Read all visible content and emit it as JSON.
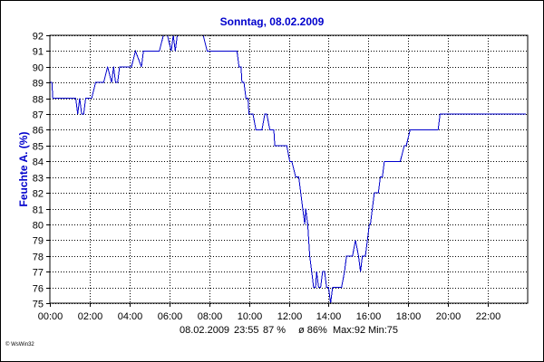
{
  "chart_data": {
    "type": "line",
    "title": "Sonntag, 08.02.2009",
    "ylabel": "Feuchte A. (%)",
    "xlabel": "",
    "ylim": [
      75,
      92
    ],
    "xlim": [
      0,
      24
    ],
    "grid": true,
    "y_ticks": [
      "75",
      "76",
      "77",
      "78",
      "79",
      "80",
      "81",
      "82",
      "83",
      "84",
      "85",
      "86",
      "87",
      "88",
      "89",
      "90",
      "91",
      "92"
    ],
    "x_ticks": [
      "00:00",
      "02:00",
      "04:00",
      "06:00",
      "08:00",
      "10:00",
      "12:00",
      "14:00",
      "16:00",
      "18:00",
      "20:00",
      "22:00"
    ],
    "footer": [
      "08.02.2009",
      "23:55",
      "87 %",
      "ø 86%",
      "Max:92",
      "Min:75"
    ],
    "credit": "© WsWin32",
    "colors": {
      "line": "#0000cc",
      "title": "#0000cc",
      "ylabel": "#0000cc",
      "grid": "#000000"
    },
    "series": [
      {
        "x": [
          0,
          0.1,
          0.15,
          0.25,
          0.35,
          1.3,
          1.4,
          1.5,
          1.6,
          1.7,
          1.8,
          1.9,
          2.1,
          2.3,
          2.4,
          2.5,
          2.6,
          2.7,
          2.9,
          3.1,
          3.2,
          3.3,
          3.4,
          3.5,
          3.6,
          3.7,
          3.8,
          3.9,
          4.1,
          4.3,
          4.6,
          4.7,
          4.8,
          4.9,
          5.1,
          5.5,
          5.7,
          5.9,
          6.1,
          6.2,
          6.3,
          6.4,
          6.5,
          6.6,
          6.8,
          7.0,
          7.3,
          7.7,
          7.9,
          8.0,
          8.1,
          8.5,
          8.9,
          9.2,
          9.4,
          9.5,
          9.6,
          9.65,
          9.75,
          9.85,
          9.95,
          10.0,
          10.1,
          10.2,
          10.35,
          10.5,
          10.65,
          10.8,
          10.9,
          11.05,
          11.15,
          11.25,
          11.3,
          11.4,
          11.5,
          11.6,
          11.7,
          11.8,
          11.9,
          12.05,
          12.15,
          12.35,
          12.5,
          12.6,
          12.7,
          12.8,
          12.85,
          12.95,
          13.05,
          13.15,
          13.25,
          13.35,
          13.4,
          13.5,
          13.6,
          13.7,
          13.8,
          13.9,
          14.0,
          14.1,
          14.2,
          14.35,
          14.5,
          14.6,
          14.65,
          14.8,
          14.9,
          15.05,
          15.2,
          15.35,
          15.5,
          15.6,
          15.7,
          15.85,
          15.95,
          16.05,
          16.1,
          16.2,
          16.3,
          16.4,
          16.5,
          16.6,
          16.7,
          16.8,
          17.0,
          17.2,
          17.4,
          17.6,
          17.8,
          17.9,
          18.1,
          18.4,
          18.6,
          18.8,
          19.0,
          19.2,
          19.4,
          19.5,
          19.6,
          19.7,
          19.8,
          19.9,
          20.0,
          20.2,
          20.5,
          21.0,
          22.0,
          23.9
        ],
        "y": [
          89,
          89,
          88,
          88,
          88,
          88,
          87,
          88,
          87,
          87,
          88,
          88,
          88,
          89,
          89,
          89,
          89,
          89,
          90,
          89,
          90,
          89,
          89,
          90,
          90,
          90,
          90,
          90,
          90,
          91,
          90,
          91,
          91,
          91,
          91,
          91,
          92,
          92,
          91,
          92,
          91,
          92,
          92,
          92,
          92,
          92,
          92,
          92,
          91,
          91,
          91,
          91,
          91,
          91,
          91,
          90,
          90,
          89,
          89,
          88,
          88,
          87,
          87,
          87,
          86,
          86,
          86,
          87,
          87,
          86,
          86,
          86,
          85,
          85,
          85,
          85,
          85,
          85,
          85,
          84,
          84,
          83,
          83,
          82,
          81,
          80,
          81,
          80,
          78,
          77,
          76,
          76,
          77,
          76,
          76,
          77,
          77,
          76,
          76,
          75,
          76,
          76,
          76,
          76,
          76,
          77,
          78,
          78,
          78,
          79,
          78,
          77,
          78,
          78,
          79,
          80,
          80,
          81,
          82,
          82,
          82,
          83,
          83,
          84,
          84,
          84,
          84,
          84,
          85,
          85,
          86,
          86,
          86,
          86,
          86,
          86,
          86,
          86,
          87,
          87,
          87,
          87,
          87,
          87,
          87,
          87,
          87,
          87
        ]
      }
    ]
  }
}
